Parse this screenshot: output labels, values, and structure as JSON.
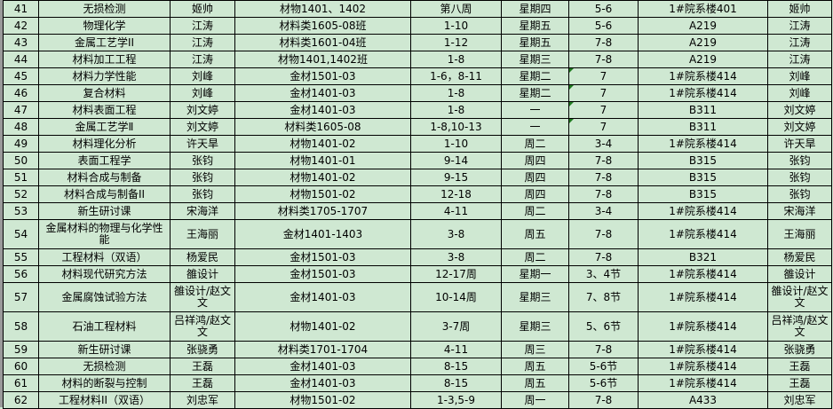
{
  "rows": [
    {
      "no": "41",
      "course": "无损检测",
      "teacher": "姬帅",
      "class": "材物1401、1402",
      "weeks": "第八周",
      "day": "星期四",
      "periods": "5-6",
      "room": "1#院系楼401",
      "teacher2": "姬帅",
      "tall": false,
      "comment": false
    },
    {
      "no": "42",
      "course": "物理化学",
      "teacher": "江涛",
      "class": "材料类1605-08班",
      "weeks": "1-10",
      "day": "星期五",
      "periods": "5-6",
      "room": "A219",
      "teacher2": "江涛",
      "tall": false,
      "comment": false
    },
    {
      "no": "43",
      "course": "金属工艺学II",
      "teacher": "江涛",
      "class": "材料类1601-04班",
      "weeks": "1-12",
      "day": "星期五",
      "periods": "7-8",
      "room": "A219",
      "teacher2": "江涛",
      "tall": false,
      "comment": false
    },
    {
      "no": "44",
      "course": "材料加工工程",
      "teacher": "江涛",
      "class": "材物1401,1402班",
      "weeks": "1-8",
      "day": "星期三",
      "periods": "7-8",
      "room": "A219",
      "teacher2": "江涛",
      "tall": false,
      "comment": false
    },
    {
      "no": "45",
      "course": "材料力学性能",
      "teacher": "刘峰",
      "class": "金材1501-03",
      "weeks": "1-6，8-11",
      "day": "星期二",
      "periods": "7",
      "room": "1#院系楼414",
      "teacher2": "刘峰",
      "tall": false,
      "comment": true
    },
    {
      "no": "46",
      "course": "复合材料",
      "teacher": "刘峰",
      "class": "金材1401-03",
      "weeks": "1-8",
      "day": "星期二",
      "periods": "7",
      "room": "1#院系楼414",
      "teacher2": "刘峰",
      "tall": false,
      "comment": true
    },
    {
      "no": "47",
      "course": "材料表面工程",
      "teacher": "刘文婷",
      "class": "金材1401-03",
      "weeks": "1-8",
      "day": "一",
      "periods": "7",
      "room": "B311",
      "teacher2": "刘文婷",
      "tall": false,
      "comment": true
    },
    {
      "no": "48",
      "course": "金属工艺学Ⅱ",
      "teacher": "刘文婷",
      "class": "材料类1605-08",
      "weeks": "1-8,10-13",
      "day": "一",
      "periods": "7",
      "room": "B311",
      "teacher2": "刘文婷",
      "tall": false,
      "comment": true
    },
    {
      "no": "49",
      "course": "材料理化分析",
      "teacher": "许天旱",
      "class": "材物1401-02",
      "weeks": "1-10",
      "day": "周二",
      "periods": "3-4",
      "room": "1#院系楼414",
      "teacher2": "许天旱",
      "tall": false,
      "comment": false
    },
    {
      "no": "50",
      "course": "表面工程学",
      "teacher": "张钧",
      "class": "材物1401-01",
      "weeks": "9-14",
      "day": "周四",
      "periods": "7-8",
      "room": "B315",
      "teacher2": "张钧",
      "tall": false,
      "comment": false
    },
    {
      "no": "51",
      "course": "材料合成与制备",
      "teacher": "张钧",
      "class": "材物1401-02",
      "weeks": "9-15",
      "day": "周四",
      "periods": "7-8",
      "room": "B315",
      "teacher2": "张钧",
      "tall": false,
      "comment": false
    },
    {
      "no": "52",
      "course": "材料合成与制备II",
      "teacher": "张钧",
      "class": "材物1501-02",
      "weeks": "12-18",
      "day": "周四",
      "periods": "7-8",
      "room": "B315",
      "teacher2": "张钧",
      "tall": false,
      "comment": false
    },
    {
      "no": "53",
      "course": "新生研讨课",
      "teacher": "宋海洋",
      "class": "材料类1705-1707",
      "weeks": "4-11",
      "day": "周二",
      "periods": "3-4",
      "room": "1#院系楼414",
      "teacher2": "宋海洋",
      "tall": false,
      "comment": false
    },
    {
      "no": "54",
      "course": "金属材料的物理与化学性能",
      "teacher": "王海丽",
      "class": "金材1401-1403",
      "weeks": "3-8",
      "day": "周五",
      "periods": "7-8",
      "room": "1#院系楼414",
      "teacher2": "王海丽",
      "tall": true,
      "comment": false
    },
    {
      "no": "55",
      "course": "工程材料（双语）",
      "teacher": "杨爱民",
      "class": "金材1501-03",
      "weeks": "3-8",
      "day": "周二",
      "periods": "7-8",
      "room": "B321",
      "teacher2": "杨爱民",
      "tall": false,
      "comment": false
    },
    {
      "no": "56",
      "course": "材料现代研究方法",
      "teacher": "雒设计",
      "class": "金材1501-03",
      "weeks": "12-17周",
      "day": "星期一",
      "periods": "3、4节",
      "room": "1#院系楼414",
      "teacher2": "雒设计",
      "tall": false,
      "comment": false
    },
    {
      "no": "57",
      "course": "金属腐蚀试验方法",
      "teacher": "雒设计/赵文文",
      "class": "金材1401-03",
      "weeks": "10-14周",
      "day": "星期三",
      "periods": "7、8节",
      "room": "1#院系楼414",
      "teacher2": "雒设计/赵文文",
      "tall": true,
      "comment": false
    },
    {
      "no": "58",
      "course": "石油工程材料",
      "teacher": "吕祥鸿/赵文文",
      "class": "材物1401-02",
      "weeks": "3-7周",
      "day": "星期三",
      "periods": "5、6节",
      "room": "1#院系楼414",
      "teacher2": "吕祥鸿/赵文文",
      "tall": true,
      "comment": false
    },
    {
      "no": "59",
      "course": "新生研讨课",
      "teacher": "张骁勇",
      "class": "材料类1701-1704",
      "weeks": "4-11",
      "day": "周三",
      "periods": "7-8",
      "room": "1#院系楼414",
      "teacher2": "张骁勇",
      "tall": false,
      "comment": false
    },
    {
      "no": "60",
      "course": "无损检测",
      "teacher": "王磊",
      "class": "金材1401-03",
      "weeks": "8-15",
      "day": "周五",
      "periods": "5-6节",
      "room": "1#院系楼414",
      "teacher2": "王磊",
      "tall": false,
      "comment": false
    },
    {
      "no": "61",
      "course": "材料的断裂与控制",
      "teacher": "王磊",
      "class": "金材1401-03",
      "weeks": "8-15",
      "day": "周五",
      "periods": "5-6节",
      "room": "1#院系楼414",
      "teacher2": "王磊",
      "tall": false,
      "comment": false
    },
    {
      "no": "62",
      "course": "工程材料II（双语）",
      "teacher": "刘忠军",
      "class": "材物1501-02",
      "weeks": "1-3,5-9",
      "day": "周一",
      "periods": "7-8",
      "room": "A433",
      "teacher2": "刘忠军",
      "tall": false,
      "comment": false
    }
  ],
  "colors": {
    "cell_background": "#cfe8d2",
    "grid": "#000000",
    "comment_marker": "#1f7a1f"
  }
}
